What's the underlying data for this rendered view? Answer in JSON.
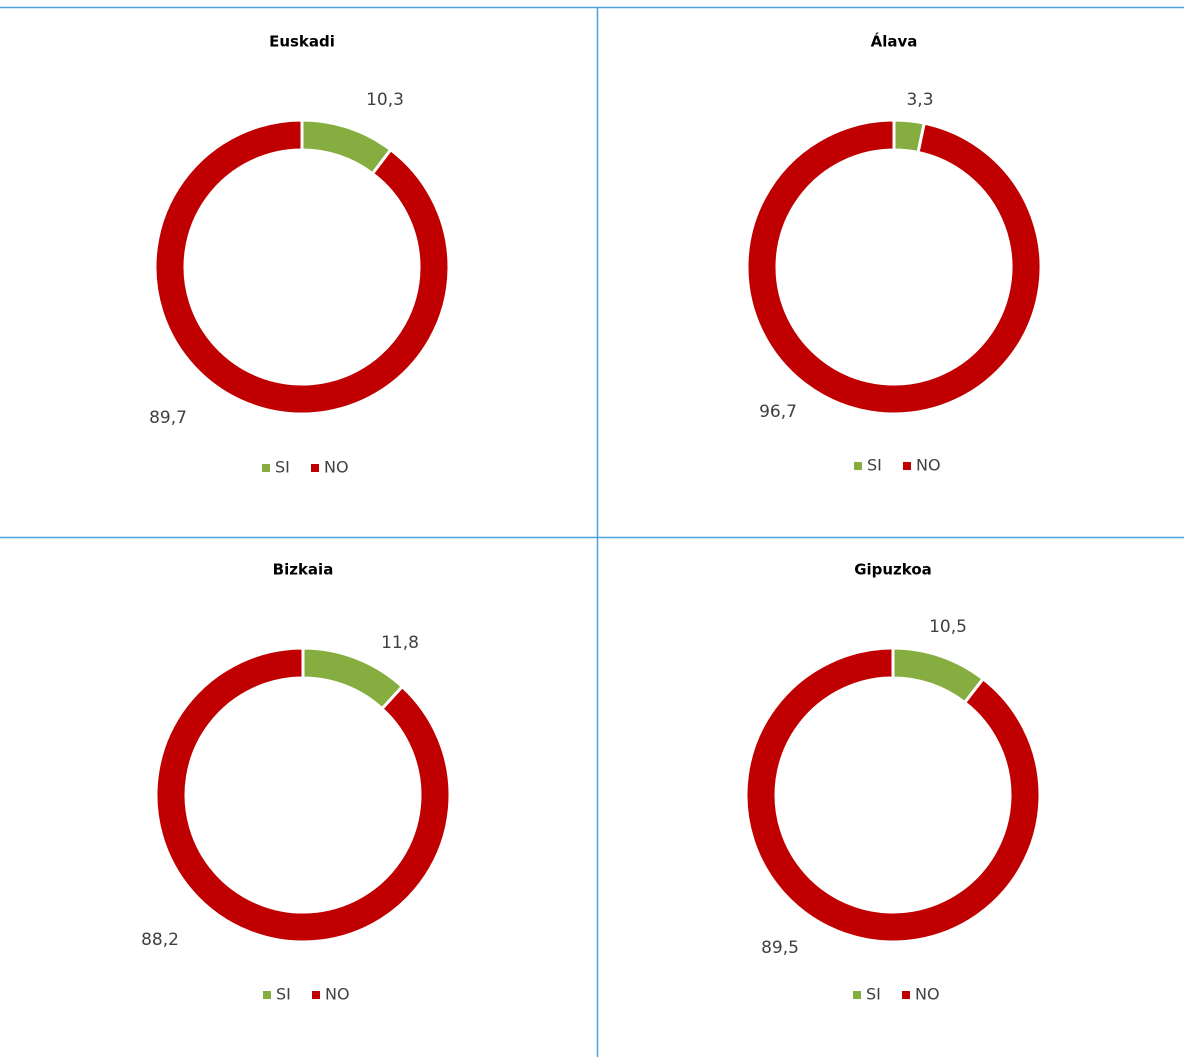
{
  "chart_data": [
    {
      "type": "donut",
      "title": "Euskadi",
      "categories": [
        "SI",
        "NO"
      ],
      "values": [
        10.3,
        89.7
      ],
      "value_labels": [
        "10,3",
        "89,7"
      ],
      "colors": [
        "#86ad3f",
        "#c00000"
      ]
    },
    {
      "type": "donut",
      "title": "Álava",
      "categories": [
        "SI",
        "NO"
      ],
      "values": [
        3.3,
        96.7
      ],
      "value_labels": [
        "3,3",
        "96,7"
      ],
      "colors": [
        "#86ad3f",
        "#c00000"
      ]
    },
    {
      "type": "donut",
      "title": "Bizkaia",
      "categories": [
        "SI",
        "NO"
      ],
      "values": [
        11.8,
        88.2
      ],
      "value_labels": [
        "11,8",
        "88,2"
      ],
      "colors": [
        "#86ad3f",
        "#c00000"
      ]
    },
    {
      "type": "donut",
      "title": "Gipuzkoa",
      "categories": [
        "SI",
        "NO"
      ],
      "values": [
        10.5,
        89.5
      ],
      "value_labels": [
        "10,5",
        "89,5"
      ],
      "colors": [
        "#86ad3f",
        "#c00000"
      ]
    }
  ]
}
